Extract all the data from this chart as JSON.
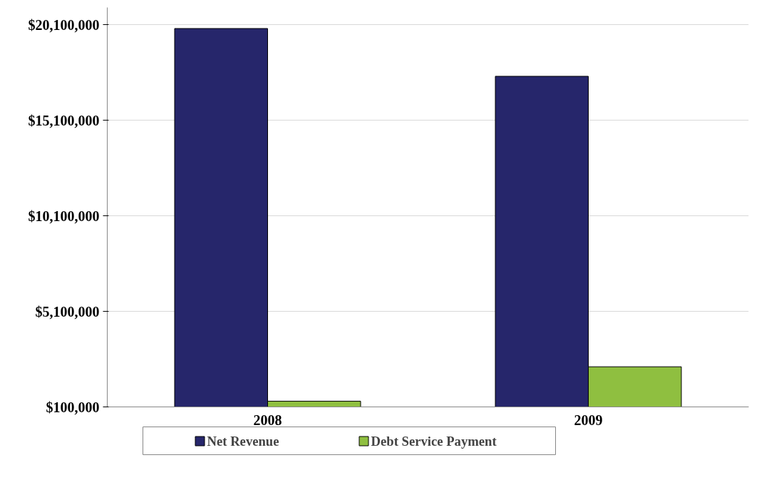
{
  "chart_data": {
    "type": "bar",
    "categories": [
      "2008",
      "2009"
    ],
    "series": [
      {
        "name": "Net Revenue",
        "color": "#26266b",
        "values": [
          19900000,
          17400000
        ]
      },
      {
        "name": "Debt Service Payment",
        "color": "#8fbf40",
        "values": [
          400000,
          2200000
        ]
      }
    ],
    "ylim": [
      100000,
      21000000
    ],
    "yticks": [
      {
        "value": 100000,
        "label": "$100,000"
      },
      {
        "value": 5100000,
        "label": "$5,100,000"
      },
      {
        "value": 10100000,
        "label": "$10,100,000"
      },
      {
        "value": 15100000,
        "label": "$15,100,000"
      },
      {
        "value": 20100000,
        "label": "$20,100,000"
      }
    ],
    "grid": "y",
    "legend": "bottom"
  }
}
